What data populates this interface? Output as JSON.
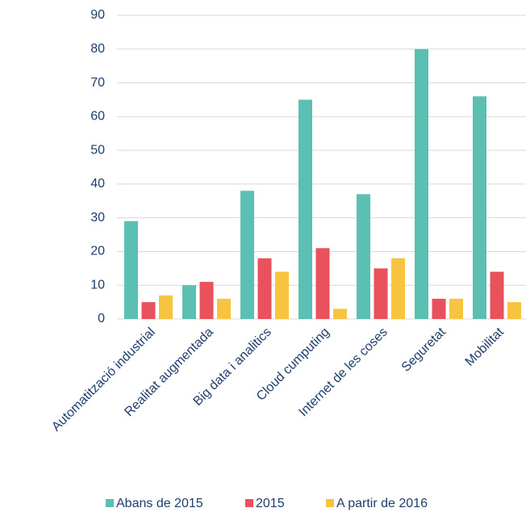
{
  "chart_data": {
    "type": "bar",
    "categories": [
      "Automatització industrial",
      "Realitat augmentada",
      "Big data i analitics",
      "Cloud cumputing",
      "Internet de les coses",
      "Seguretat",
      "Mobilitat"
    ],
    "series": [
      {
        "name": "Abans de 2015",
        "color": "#5cbfb4",
        "values": [
          29,
          10,
          38,
          65,
          37,
          80,
          66
        ]
      },
      {
        "name": "2015",
        "color": "#e9525c",
        "values": [
          5,
          11,
          18,
          21,
          15,
          6,
          14
        ]
      },
      {
        "name": "A partir de 2016",
        "color": "#f8c440",
        "values": [
          7,
          6,
          14,
          3,
          18,
          6,
          5
        ]
      }
    ],
    "ylim": [
      0,
      90
    ],
    "yticks": [
      0,
      10,
      20,
      30,
      40,
      50,
      60,
      70,
      80,
      90
    ],
    "grid": true,
    "legend": "bottom"
  }
}
